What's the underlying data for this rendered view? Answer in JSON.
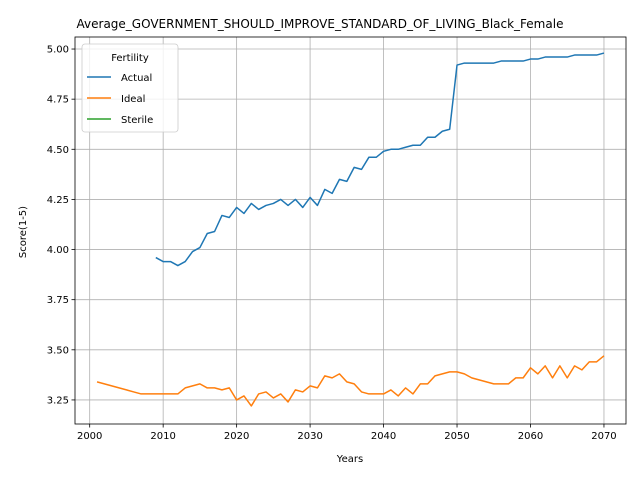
{
  "chart_data": {
    "type": "line",
    "title": "Average_GOVERNMENT_SHOULD_IMPROVE_STANDARD_OF_LIVING_Black_Female",
    "xlabel": "Years",
    "ylabel": "Score(1-5)",
    "xlim": [
      1998,
      2073
    ],
    "ylim": [
      3.13,
      5.06
    ],
    "xticks": [
      2000,
      2010,
      2020,
      2030,
      2040,
      2050,
      2060,
      2070
    ],
    "yticks": [
      "3.25",
      "3.50",
      "3.75",
      "4.00",
      "4.25",
      "4.50",
      "4.75",
      "5.00"
    ],
    "grid": true,
    "legend": {
      "title": "Fertility",
      "placement": "top-left"
    },
    "series": [
      {
        "name": "Actual",
        "color": "#1f77b4",
        "x": [
          2009,
          2010,
          2011,
          2012,
          2013,
          2014,
          2015,
          2016,
          2017,
          2018,
          2019,
          2020,
          2021,
          2022,
          2023,
          2024,
          2025,
          2026,
          2027,
          2028,
          2029,
          2030,
          2031,
          2032,
          2033,
          2034,
          2035,
          2036,
          2037,
          2038,
          2039,
          2040,
          2041,
          2042,
          2043,
          2044,
          2045,
          2046,
          2047,
          2048,
          2049,
          2050,
          2051,
          2052,
          2053,
          2054,
          2055,
          2056,
          2057,
          2058,
          2059,
          2060,
          2061,
          2062,
          2063,
          2064,
          2065,
          2066,
          2067,
          2068,
          2069,
          2070
        ],
        "y": [
          3.96,
          3.94,
          3.94,
          3.92,
          3.94,
          3.99,
          4.01,
          4.08,
          4.09,
          4.17,
          4.16,
          4.21,
          4.18,
          4.23,
          4.2,
          4.22,
          4.23,
          4.25,
          4.22,
          4.25,
          4.21,
          4.26,
          4.22,
          4.3,
          4.28,
          4.35,
          4.34,
          4.41,
          4.4,
          4.46,
          4.46,
          4.49,
          4.5,
          4.5,
          4.51,
          4.52,
          4.52,
          4.56,
          4.56,
          4.59,
          4.6,
          4.92,
          4.93,
          4.93,
          4.93,
          4.93,
          4.93,
          4.94,
          4.94,
          4.94,
          4.94,
          4.95,
          4.95,
          4.96,
          4.96,
          4.96,
          4.96,
          4.97,
          4.97,
          4.97,
          4.97,
          4.98
        ]
      },
      {
        "name": "Ideal",
        "color": "#ff7f0e",
        "x": [
          2001,
          2002,
          2003,
          2004,
          2005,
          2006,
          2007,
          2008,
          2009,
          2010,
          2011,
          2012,
          2013,
          2014,
          2015,
          2016,
          2017,
          2018,
          2019,
          2020,
          2021,
          2022,
          2023,
          2024,
          2025,
          2026,
          2027,
          2028,
          2029,
          2030,
          2031,
          2032,
          2033,
          2034,
          2035,
          2036,
          2037,
          2038,
          2039,
          2040,
          2041,
          2042,
          2043,
          2044,
          2045,
          2046,
          2047,
          2048,
          2049,
          2050,
          2051,
          2052,
          2053,
          2054,
          2055,
          2056,
          2057,
          2058,
          2059,
          2060,
          2061,
          2062,
          2063,
          2064,
          2065,
          2066,
          2067,
          2068,
          2069,
          2070
        ],
        "y": [
          3.34,
          3.33,
          3.32,
          3.31,
          3.3,
          3.29,
          3.28,
          3.28,
          3.28,
          3.28,
          3.28,
          3.28,
          3.31,
          3.32,
          3.33,
          3.31,
          3.31,
          3.3,
          3.31,
          3.25,
          3.27,
          3.22,
          3.28,
          3.29,
          3.26,
          3.28,
          3.24,
          3.3,
          3.29,
          3.32,
          3.31,
          3.37,
          3.36,
          3.38,
          3.34,
          3.33,
          3.29,
          3.28,
          3.28,
          3.28,
          3.3,
          3.27,
          3.31,
          3.28,
          3.33,
          3.33,
          3.37,
          3.38,
          3.39,
          3.39,
          3.38,
          3.36,
          3.35,
          3.34,
          3.33,
          3.33,
          3.33,
          3.36,
          3.36,
          3.41,
          3.38,
          3.42,
          3.36,
          3.42,
          3.36,
          3.42,
          3.4,
          3.44,
          3.44,
          3.47
        ]
      },
      {
        "name": "Sterile",
        "color": "#2ca02c",
        "x": [],
        "y": []
      }
    ]
  }
}
